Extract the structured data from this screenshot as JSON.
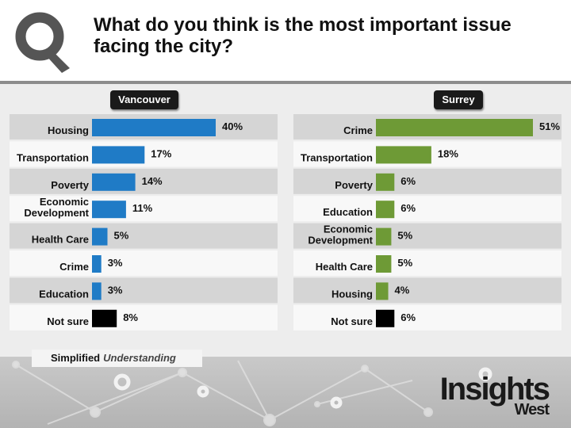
{
  "title": "What do you think is the most important issue facing the city?",
  "colors": {
    "vancouver_bar": "#1f7bc6",
    "surrey_bar": "#6e9a36",
    "not_sure_bar": "#000000"
  },
  "tagline": {
    "strong": "Simplified",
    "emphasis": "Understanding"
  },
  "brand": {
    "main": "Insights",
    "sub": "West"
  },
  "chart_data": [
    {
      "type": "bar",
      "title": "Vancouver",
      "orientation": "horizontal",
      "categories": [
        "Housing",
        "Transportation",
        "Poverty",
        "Economic Development",
        "Health Care",
        "Crime",
        "Education",
        "Not sure"
      ],
      "values": [
        40,
        17,
        14,
        11,
        5,
        3,
        3,
        8
      ],
      "labels": [
        "40%",
        "17%",
        "14%",
        "11%",
        "5%",
        "3%",
        "3%",
        "8%"
      ],
      "xlim": [
        0,
        40
      ],
      "grid": false
    },
    {
      "type": "bar",
      "title": "Surrey",
      "orientation": "horizontal",
      "categories": [
        "Crime",
        "Transportation",
        "Poverty",
        "Education",
        "Economic Development",
        "Health Care",
        "Housing",
        "Not sure"
      ],
      "values": [
        51,
        18,
        6,
        6,
        5,
        5,
        4,
        6
      ],
      "labels": [
        "51%",
        "18%",
        "6%",
        "6%",
        "5%",
        "5%",
        "4%",
        "6%"
      ],
      "xlim": [
        0,
        51
      ],
      "grid": false
    }
  ]
}
